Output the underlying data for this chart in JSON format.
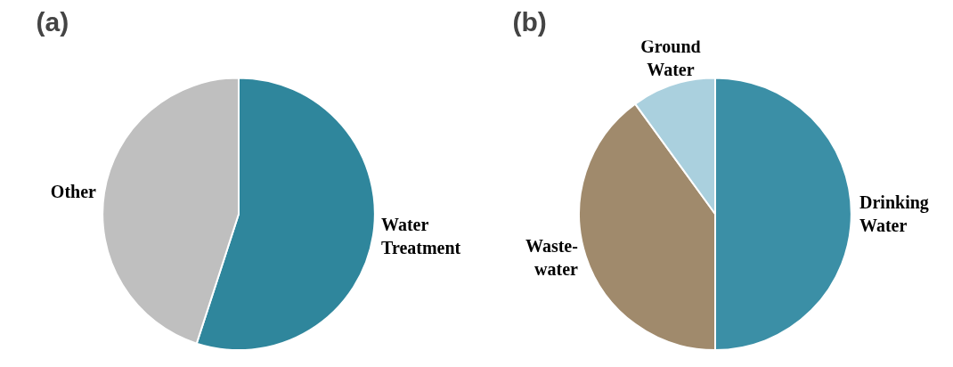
{
  "chart_data": [
    {
      "type": "pie",
      "title": "(a)",
      "categories": [
        "Water Treatment",
        "Other"
      ],
      "values": [
        55,
        45
      ],
      "colors": [
        "#2f869c",
        "#bfbfbf"
      ]
    },
    {
      "type": "pie",
      "title": "(b)",
      "categories": [
        "Drinking Water",
        "Waste-water",
        "Ground Water"
      ],
      "values": [
        50,
        40,
        10
      ],
      "colors": [
        "#3b8fa6",
        "#a08a6c",
        "#aad0de"
      ]
    }
  ]
}
